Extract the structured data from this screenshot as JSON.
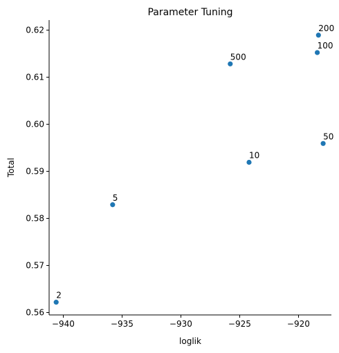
{
  "chart_data": {
    "type": "scatter",
    "title": "Parameter Tuning",
    "xlabel": "loglik",
    "ylabel": "Total",
    "xlim": [
      -941.2,
      -917.2
    ],
    "ylim": [
      0.5595,
      0.6221
    ],
    "xticks": [
      -940,
      -935,
      -930,
      -925,
      -920
    ],
    "xtick_labels": [
      "−940",
      "−935",
      "−930",
      "−925",
      "−920"
    ],
    "yticks": [
      0.56,
      0.57,
      0.58,
      0.59,
      0.6,
      0.61,
      0.62
    ],
    "ytick_labels": [
      "0.56",
      "0.57",
      "0.58",
      "0.59",
      "0.60",
      "0.61",
      "0.62"
    ],
    "grid": false,
    "marker_color": "#1f77b4",
    "points": [
      {
        "x": -940.6,
        "y": 0.5622,
        "label": "2"
      },
      {
        "x": -935.8,
        "y": 0.5829,
        "label": "5"
      },
      {
        "x": -924.2,
        "y": 0.5919,
        "label": "10"
      },
      {
        "x": -917.9,
        "y": 0.5959,
        "label": "50"
      },
      {
        "x": -918.4,
        "y": 0.6152,
        "label": "100"
      },
      {
        "x": -918.3,
        "y": 0.6189,
        "label": "200"
      },
      {
        "x": -925.8,
        "y": 0.6128,
        "label": "500"
      }
    ]
  }
}
